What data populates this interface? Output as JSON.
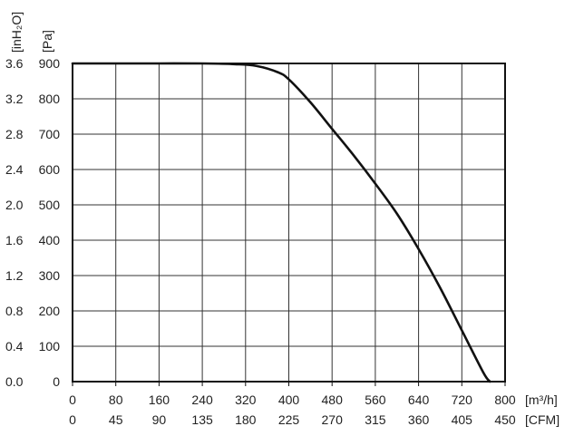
{
  "chart_data": {
    "type": "line",
    "title": "",
    "x": [
      0,
      80,
      160,
      240,
      300,
      340,
      380,
      400,
      440,
      480,
      520,
      560,
      600,
      640,
      680,
      720,
      760,
      772
    ],
    "series": [
      {
        "values": [
          900,
          900,
          900,
          900,
          898,
          893,
          875,
          855,
          790,
          715,
          640,
          560,
          475,
          375,
          265,
          145,
          25,
          0
        ]
      }
    ],
    "x_axis_primary": {
      "unit_label": "[m³/h]",
      "ticks": [
        "0",
        "80",
        "160",
        "240",
        "320",
        "400",
        "480",
        "560",
        "640",
        "720",
        "800"
      ],
      "range": [
        0,
        800
      ]
    },
    "x_axis_secondary": {
      "unit_label": "[CFM]",
      "ticks": [
        "0",
        "45",
        "90",
        "135",
        "180",
        "225",
        "270",
        "315",
        "360",
        "405",
        "450"
      ]
    },
    "y_axis_primary": {
      "unit_label": "[Pa]",
      "ticks": [
        "0",
        "100",
        "200",
        "300",
        "400",
        "500",
        "600",
        "700",
        "800",
        "900"
      ],
      "range": [
        0,
        900
      ]
    },
    "y_axis_secondary": {
      "unit_label": "[inH₂O]",
      "ticks": [
        "0.0",
        "0.4",
        "0.8",
        "1.2",
        "1.6",
        "2.0",
        "2.4",
        "2.8",
        "3.2",
        "3.6"
      ]
    },
    "grid": true,
    "colors": {
      "curve": "#111111",
      "grid": "#333333",
      "frame": "#111111"
    }
  }
}
